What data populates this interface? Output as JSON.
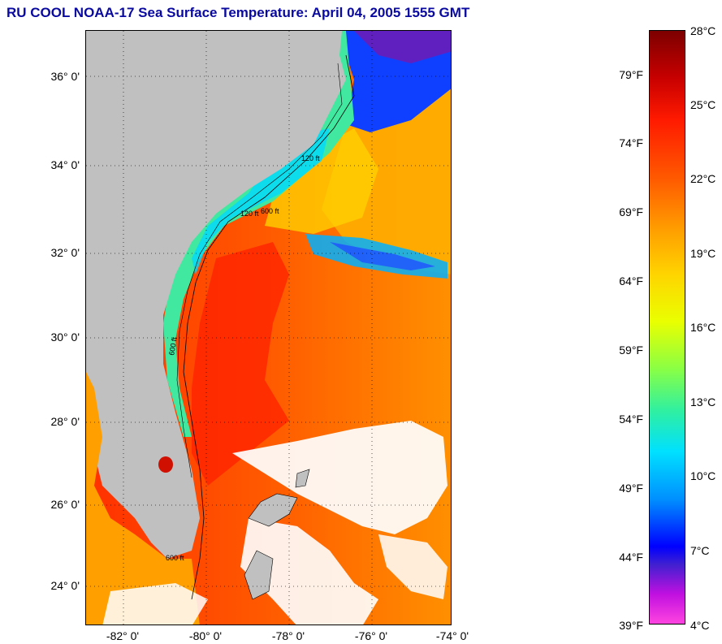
{
  "title": "RU COOL  NOAA-17  Sea Surface Temperature:  April 04, 2005 1555 GMT",
  "map": {
    "lat_labels": [
      "36° 0'",
      "34° 0'",
      "32° 0'",
      "30° 0'",
      "28° 0'",
      "26° 0'",
      "24° 0'"
    ],
    "lon_labels": [
      "-82° 0'",
      "-80° 0'",
      "-78° 0'",
      "-76° 0'",
      "-74° 0'"
    ],
    "contour_labels": [
      "120 ft",
      "600 ft",
      "120 ft",
      "600 ft",
      "600 ft"
    ]
  },
  "colorbar": {
    "fahrenheit_labels": [
      "79°F",
      "74°F",
      "69°F",
      "64°F",
      "59°F",
      "54°F",
      "49°F",
      "44°F",
      "39°F"
    ],
    "celsius_labels": [
      "28°C",
      "25°C",
      "22°C",
      "19°C",
      "16°C",
      "13°C",
      "10°C",
      "7°C",
      "4°C"
    ]
  },
  "colors": {
    "title": "#0a0aa0",
    "land": "#c0c0c0",
    "cloud": "#ffffff"
  }
}
